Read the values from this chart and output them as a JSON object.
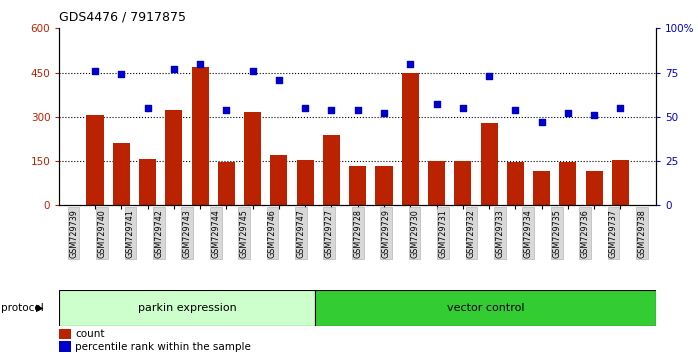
{
  "title": "GDS4476 / 7917875",
  "samples": [
    "GSM729739",
    "GSM729740",
    "GSM729741",
    "GSM729742",
    "GSM729743",
    "GSM729744",
    "GSM729745",
    "GSM729746",
    "GSM729747",
    "GSM729727",
    "GSM729728",
    "GSM729729",
    "GSM729730",
    "GSM729731",
    "GSM729732",
    "GSM729733",
    "GSM729734",
    "GSM729735",
    "GSM729736",
    "GSM729737",
    "GSM729738"
  ],
  "counts": [
    305,
    210,
    157,
    323,
    470,
    147,
    315,
    170,
    152,
    240,
    132,
    132,
    450,
    150,
    150,
    278,
    147,
    117,
    147,
    117,
    155
  ],
  "percentile": [
    76,
    74,
    55,
    77,
    80,
    54,
    76,
    71,
    55,
    54,
    54,
    52,
    80,
    57,
    55,
    73,
    54,
    47,
    52,
    51,
    55
  ],
  "group1_label": "parkin expression",
  "group2_label": "vector control",
  "group1_count": 9,
  "group2_count": 12,
  "bar_color": "#bb2200",
  "dot_color": "#0000cc",
  "left_ylim": [
    0,
    600
  ],
  "right_ylim": [
    0,
    100
  ],
  "left_yticks": [
    0,
    150,
    300,
    450,
    600
  ],
  "right_yticks": [
    0,
    25,
    50,
    75,
    100
  ],
  "right_yticklabels": [
    "0",
    "25",
    "50",
    "75",
    "100%"
  ],
  "grid_values": [
    150,
    300,
    450
  ],
  "bg_color": "#d8d8d8",
  "group1_color": "#ccffcc",
  "group2_color": "#33cc33",
  "protocol_label": "protocol"
}
